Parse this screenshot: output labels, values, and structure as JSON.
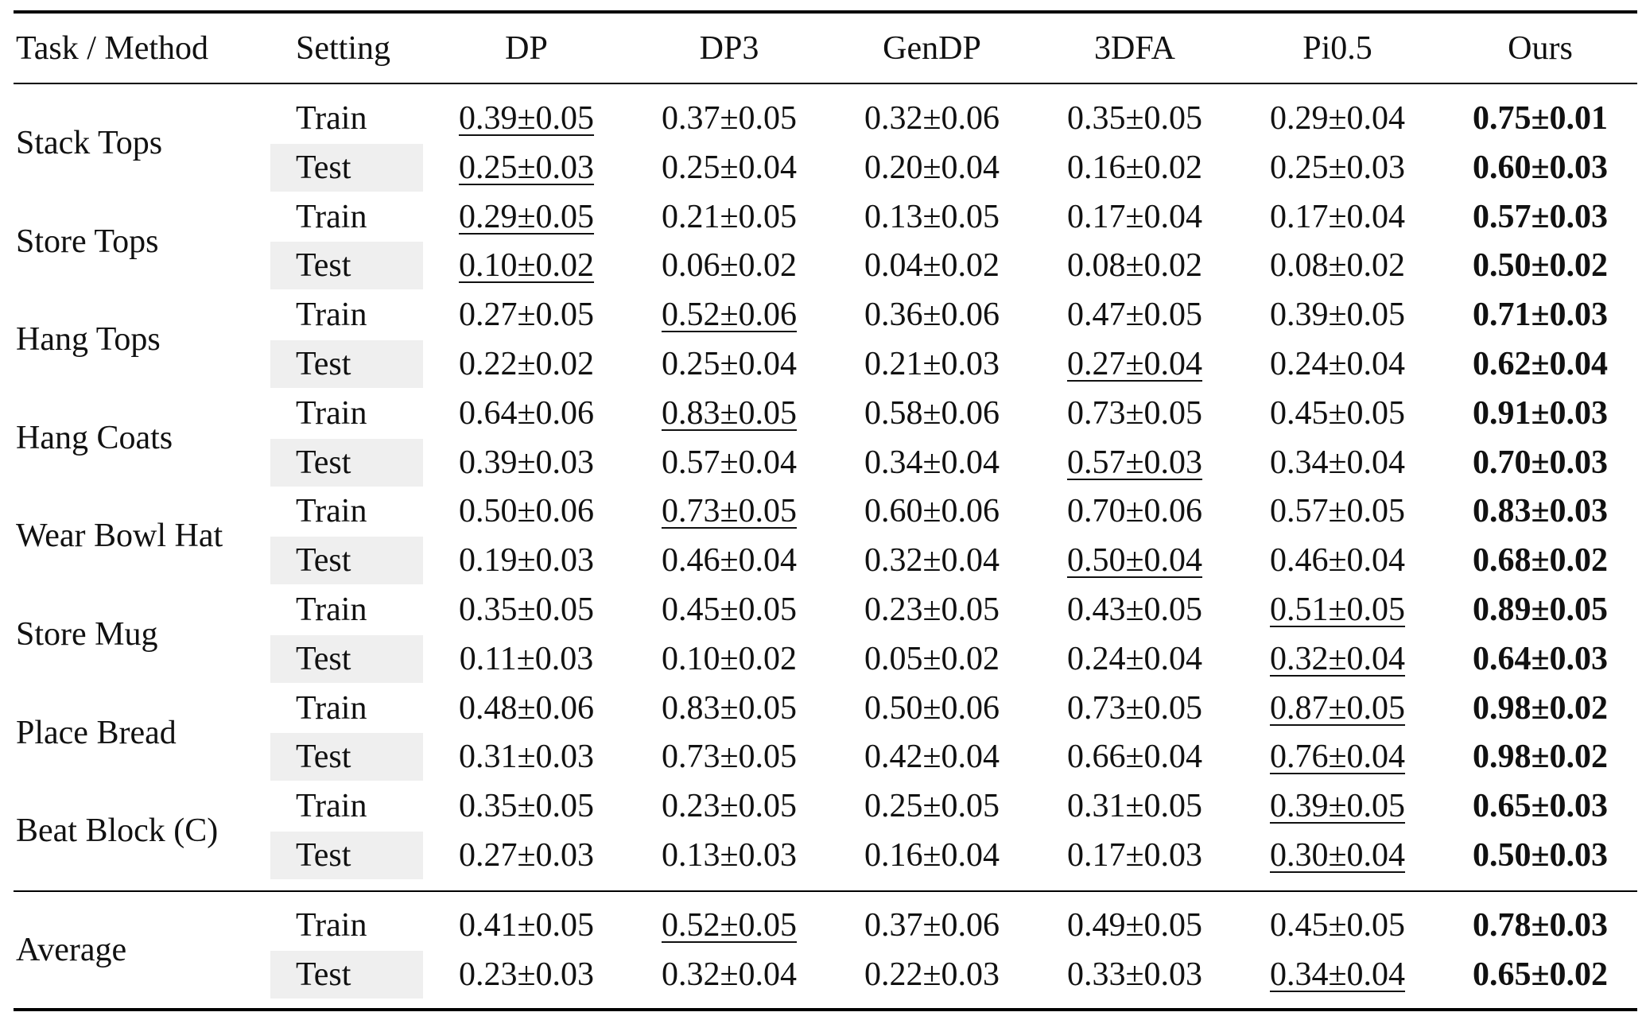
{
  "table": {
    "headers": [
      "Task / Method",
      "Setting",
      "DP",
      "DP3",
      "GenDP",
      "3DFA",
      "Pi0.5",
      "Ours"
    ],
    "tasks": [
      {
        "name": "Stack Tops",
        "rows": [
          {
            "setting": "Train",
            "values": [
              "0.39±0.05",
              "0.37±0.05",
              "0.32±0.06",
              "0.35±0.05",
              "0.29±0.04",
              "0.75±0.01"
            ],
            "best": 5,
            "second": 0
          },
          {
            "setting": "Test",
            "values": [
              "0.25±0.03",
              "0.25±0.04",
              "0.20±0.04",
              "0.16±0.02",
              "0.25±0.03",
              "0.60±0.03"
            ],
            "best": 5,
            "second": 0
          }
        ]
      },
      {
        "name": "Store Tops",
        "rows": [
          {
            "setting": "Train",
            "values": [
              "0.29±0.05",
              "0.21±0.05",
              "0.13±0.05",
              "0.17±0.04",
              "0.17±0.04",
              "0.57±0.03"
            ],
            "best": 5,
            "second": 0
          },
          {
            "setting": "Test",
            "values": [
              "0.10±0.02",
              "0.06±0.02",
              "0.04±0.02",
              "0.08±0.02",
              "0.08±0.02",
              "0.50±0.02"
            ],
            "best": 5,
            "second": 0
          }
        ]
      },
      {
        "name": "Hang Tops",
        "rows": [
          {
            "setting": "Train",
            "values": [
              "0.27±0.05",
              "0.52±0.06",
              "0.36±0.06",
              "0.47±0.05",
              "0.39±0.05",
              "0.71±0.03"
            ],
            "best": 5,
            "second": 1
          },
          {
            "setting": "Test",
            "values": [
              "0.22±0.02",
              "0.25±0.04",
              "0.21±0.03",
              "0.27±0.04",
              "0.24±0.04",
              "0.62±0.04"
            ],
            "best": 5,
            "second": 3
          }
        ]
      },
      {
        "name": "Hang Coats",
        "rows": [
          {
            "setting": "Train",
            "values": [
              "0.64±0.06",
              "0.83±0.05",
              "0.58±0.06",
              "0.73±0.05",
              "0.45±0.05",
              "0.91±0.03"
            ],
            "best": 5,
            "second": 1
          },
          {
            "setting": "Test",
            "values": [
              "0.39±0.03",
              "0.57±0.04",
              "0.34±0.04",
              "0.57±0.03",
              "0.34±0.04",
              "0.70±0.03"
            ],
            "best": 5,
            "second": 3
          }
        ]
      },
      {
        "name": "Wear Bowl Hat",
        "rows": [
          {
            "setting": "Train",
            "values": [
              "0.50±0.06",
              "0.73±0.05",
              "0.60±0.06",
              "0.70±0.06",
              "0.57±0.05",
              "0.83±0.03"
            ],
            "best": 5,
            "second": 1
          },
          {
            "setting": "Test",
            "values": [
              "0.19±0.03",
              "0.46±0.04",
              "0.32±0.04",
              "0.50±0.04",
              "0.46±0.04",
              "0.68±0.02"
            ],
            "best": 5,
            "second": 3
          }
        ]
      },
      {
        "name": "Store Mug",
        "rows": [
          {
            "setting": "Train",
            "values": [
              "0.35±0.05",
              "0.45±0.05",
              "0.23±0.05",
              "0.43±0.05",
              "0.51±0.05",
              "0.89±0.05"
            ],
            "best": 5,
            "second": 4
          },
          {
            "setting": "Test",
            "values": [
              "0.11±0.03",
              "0.10±0.02",
              "0.05±0.02",
              "0.24±0.04",
              "0.32±0.04",
              "0.64±0.03"
            ],
            "best": 5,
            "second": 4
          }
        ]
      },
      {
        "name": "Place Bread",
        "rows": [
          {
            "setting": "Train",
            "values": [
              "0.48±0.06",
              "0.83±0.05",
              "0.50±0.06",
              "0.73±0.05",
              "0.87±0.05",
              "0.98±0.02"
            ],
            "best": 5,
            "second": 4
          },
          {
            "setting": "Test",
            "values": [
              "0.31±0.03",
              "0.73±0.05",
              "0.42±0.04",
              "0.66±0.04",
              "0.76±0.04",
              "0.98±0.02"
            ],
            "best": 5,
            "second": 4
          }
        ]
      },
      {
        "name": "Beat Block (C)",
        "rows": [
          {
            "setting": "Train",
            "values": [
              "0.35±0.05",
              "0.23±0.05",
              "0.25±0.05",
              "0.31±0.05",
              "0.39±0.05",
              "0.65±0.03"
            ],
            "best": 5,
            "second": 4
          },
          {
            "setting": "Test",
            "values": [
              "0.27±0.03",
              "0.13±0.03",
              "0.16±0.04",
              "0.17±0.03",
              "0.30±0.04",
              "0.50±0.03"
            ],
            "best": 5,
            "second": 4
          }
        ]
      }
    ],
    "average": {
      "name": "Average",
      "rows": [
        {
          "setting": "Train",
          "values": [
            "0.41±0.05",
            "0.52±0.05",
            "0.37±0.06",
            "0.49±0.05",
            "0.45±0.05",
            "0.78±0.03"
          ],
          "best": 5,
          "second": 1
        },
        {
          "setting": "Test",
          "values": [
            "0.23±0.03",
            "0.32±0.04",
            "0.22±0.03",
            "0.33±0.03",
            "0.34±0.04",
            "0.65±0.02"
          ],
          "best": 5,
          "second": 4
        }
      ]
    }
  }
}
